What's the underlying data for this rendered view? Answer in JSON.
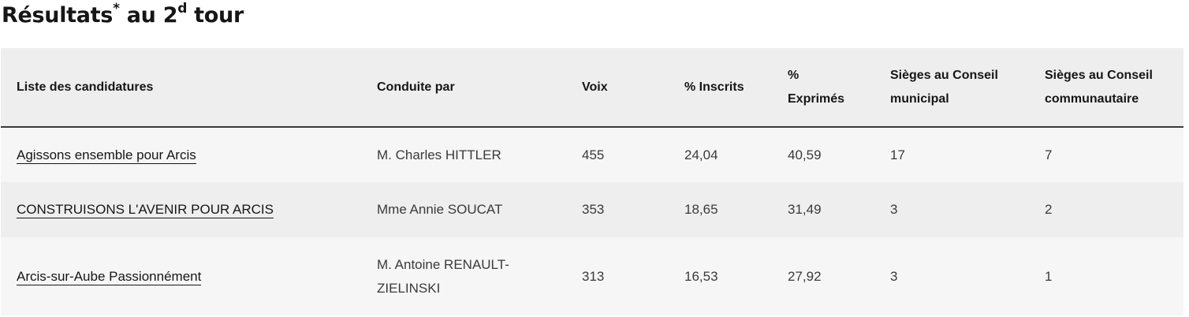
{
  "title": {
    "prefix": "Résultats",
    "asterisk": "*",
    "middle": " au 2",
    "superscript": "d",
    "suffix": " tour"
  },
  "table": {
    "headers": {
      "list": "Liste des candidatures",
      "leader": "Conduite par",
      "votes": "Voix",
      "pct_registered": "% Inscrits",
      "pct_expressed_1": "%",
      "pct_expressed_2": "Exprimés",
      "seats_municipal_1": "Sièges au Conseil",
      "seats_municipal_2": "municipal",
      "seats_community_1": "Sièges au Conseil",
      "seats_community_2": "communautaire"
    },
    "rows": [
      {
        "list": "Agissons ensemble pour Arcis",
        "leader_1": "M. Charles HITTLER",
        "leader_2": "",
        "votes": "455",
        "pct_registered": "24,04",
        "pct_expressed": "40,59",
        "seats_municipal": "17",
        "seats_community": "7"
      },
      {
        "list": "CONSTRUISONS L'AVENIR POUR ARCIS",
        "leader_1": "Mme Annie SOUCAT",
        "leader_2": "",
        "votes": "353",
        "pct_registered": "18,65",
        "pct_expressed": "31,49",
        "seats_municipal": "3",
        "seats_community": "2"
      },
      {
        "list": "Arcis-sur-Aube Passionnément",
        "leader_1": "M. Antoine RENAULT-",
        "leader_2": "ZIELINSKI",
        "votes": "313",
        "pct_registered": "16,53",
        "pct_expressed": "27,92",
        "seats_municipal": "3",
        "seats_community": "1"
      }
    ]
  },
  "colors": {
    "header_bg": "#eeeeee",
    "row_light": "#f6f6f6",
    "row_dark": "#eeeeee",
    "text": "#161616",
    "cell_text": "#3a3a3a"
  }
}
